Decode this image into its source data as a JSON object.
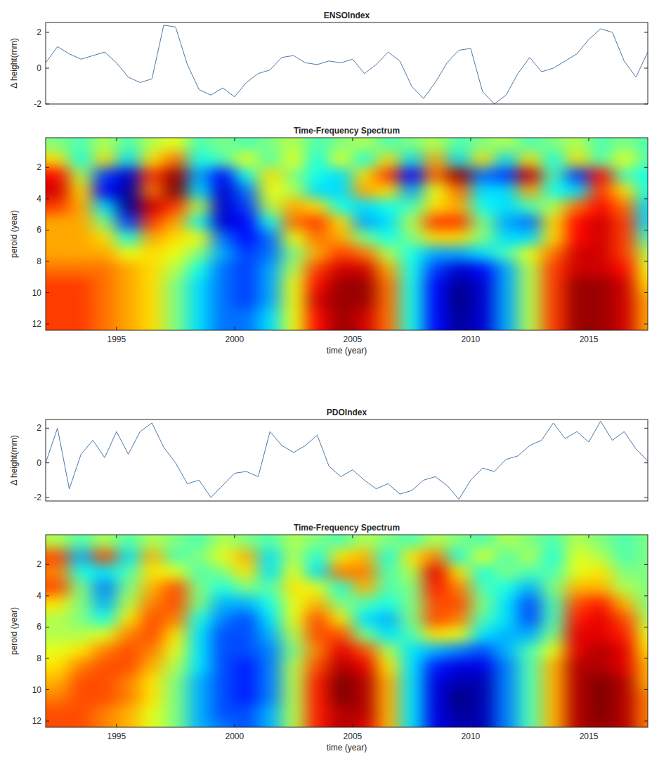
{
  "chart_data": [
    {
      "type": "line",
      "title": "ENSOIndex",
      "y_label": "Δ height(mm)",
      "x": [
        1992,
        1992.5,
        1993,
        1993.5,
        1994,
        1994.5,
        1995,
        1995.5,
        1996,
        1996.5,
        1997,
        1997.5,
        1998,
        1998.5,
        1999,
        1999.5,
        2000,
        2000.5,
        2001,
        2001.5,
        2002,
        2002.5,
        2003,
        2003.5,
        2004,
        2004.5,
        2005,
        2005.5,
        2006,
        2006.5,
        2007,
        2007.5,
        2008,
        2008.5,
        2009,
        2009.5,
        2010,
        2010.5,
        2011,
        2011.5,
        2012,
        2012.5,
        2013,
        2013.5,
        2014,
        2014.5,
        2015,
        2015.5,
        2016,
        2016.5,
        2017,
        2017.5
      ],
      "series": [
        {
          "color": "#4a78a8",
          "values": [
            0.3,
            1.2,
            0.8,
            0.5,
            0.7,
            0.9,
            0.3,
            -0.5,
            -0.8,
            -0.6,
            2.4,
            2.3,
            0.2,
            -1.2,
            -1.5,
            -1.1,
            -1.6,
            -0.8,
            -0.3,
            -0.1,
            0.6,
            0.7,
            0.3,
            0.2,
            0.4,
            0.3,
            0.5,
            -0.3,
            0.2,
            0.9,
            0.4,
            -1.0,
            -1.7,
            -0.8,
            0.3,
            1.0,
            1.1,
            -1.3,
            -2.0,
            -1.5,
            -0.3,
            0.6,
            -0.2,
            0.0,
            0.4,
            0.8,
            1.6,
            2.2,
            2.0,
            0.4,
            -0.5,
            0.9
          ]
        }
      ],
      "xlim": [
        1992,
        2017.5
      ],
      "ylim": [
        -2.0,
        2.55
      ],
      "yticks": [
        -2,
        0,
        2
      ],
      "tick_labels": "y"
    },
    {
      "type": "heatmap",
      "title": "Time-Frequency Spectrum",
      "x_label": "time (year)",
      "y_label": "peroid (year)",
      "x": [
        1992.5,
        1993.5,
        1994.5,
        1995.5,
        1996.5,
        1997.5,
        1998.5,
        1999.5,
        2000.5,
        2001.5,
        2002.5,
        2003.5,
        2004.5,
        2005.5,
        2006.5,
        2007.5,
        2008.5,
        2009.5,
        2010.5,
        2011.5,
        2012.5,
        2013.5,
        2014.5,
        2015.5,
        2016.5,
        2017.5
      ],
      "y": [
        0.5,
        1.5,
        2.5,
        3.5,
        4.5,
        5.5,
        6.5,
        7.5,
        8.5,
        9.5,
        10.5,
        11.5,
        12.5
      ],
      "cells": [
        [
          0,
          -0.1,
          0.1,
          -0.1,
          0.1,
          0.2,
          -0.1,
          0,
          -0.1,
          0,
          0.1,
          -0.1,
          0,
          0.1,
          -0.1,
          0,
          0.1,
          -0.1,
          0,
          0.1,
          -0.1,
          0,
          0.1,
          -0.1,
          0,
          -0.1
        ],
        [
          0.3,
          -0.2,
          0.3,
          -0.3,
          0.3,
          0.5,
          -0.2,
          -0.1,
          0.2,
          -0.1,
          0.2,
          -0.2,
          0.2,
          -0.2,
          0.3,
          -0.3,
          0.4,
          -0.3,
          0.3,
          -0.3,
          0.3,
          -0.2,
          0.3,
          -0.1,
          0.2,
          -0.1
        ],
        [
          0.7,
          0.1,
          -0.6,
          -0.8,
          0.6,
          0.9,
          -0.4,
          -0.7,
          -0.2,
          0.3,
          0.0,
          -0.2,
          -0.3,
          0.3,
          0.6,
          -0.7,
          0.5,
          0.9,
          -0.5,
          -0.6,
          0.8,
          -0.1,
          -0.6,
          0.7,
          -0.1,
          -0.2
        ],
        [
          0.8,
          0.3,
          -0.7,
          -0.9,
          0.5,
          0.95,
          -0.3,
          -0.8,
          -0.5,
          0.2,
          0.1,
          -0.3,
          -0.3,
          0.4,
          0.3,
          -0.4,
          0.2,
          0.5,
          -0.3,
          -0.3,
          0.4,
          -0.2,
          -0.3,
          0.6,
          0.3,
          -0.2
        ],
        [
          0.6,
          0.4,
          -0.3,
          -0.9,
          0.8,
          0.6,
          0.1,
          -0.8,
          -0.6,
          0.1,
          0.4,
          0.3,
          -0.2,
          -0.3,
          -0.2,
          -0.1,
          0.3,
          0.4,
          -0.2,
          -0.3,
          -0.1,
          0.1,
          0.5,
          0.7,
          0.5,
          -0.3
        ],
        [
          0.4,
          0.4,
          0.0,
          -0.6,
          0.6,
          0.4,
          -0.2,
          -0.8,
          -0.7,
          -0.2,
          0.5,
          0.6,
          0.3,
          -0.4,
          -0.3,
          0.1,
          0.6,
          0.6,
          0.0,
          -0.4,
          -0.5,
          0.3,
          0.7,
          0.8,
          0.6,
          -0.3
        ],
        [
          0.4,
          0.4,
          0.3,
          -0.2,
          0.4,
          0.3,
          0.2,
          -0.5,
          -0.7,
          -0.5,
          0.2,
          0.5,
          0.4,
          0.0,
          -0.2,
          0.0,
          0.3,
          0.3,
          0.0,
          -0.3,
          -0.3,
          0.3,
          0.7,
          0.8,
          0.6,
          -0.1
        ],
        [
          0.4,
          0.4,
          0.4,
          0.2,
          0.3,
          0.2,
          0.0,
          -0.4,
          -0.6,
          -0.5,
          0.0,
          0.4,
          0.6,
          0.5,
          0.1,
          -0.2,
          -0.4,
          -0.4,
          -0.3,
          -0.1,
          0.2,
          0.5,
          0.8,
          0.8,
          0.6,
          0.1
        ],
        [
          0.5,
          0.5,
          0.5,
          0.4,
          0.3,
          0.1,
          -0.2,
          -0.5,
          -0.6,
          -0.4,
          0.1,
          0.6,
          0.8,
          0.8,
          0.4,
          -0.2,
          -0.6,
          -0.8,
          -0.7,
          -0.4,
          0.1,
          0.6,
          0.8,
          0.8,
          0.7,
          0.2
        ],
        [
          0.6,
          0.6,
          0.5,
          0.4,
          0.3,
          0.0,
          -0.3,
          -0.5,
          -0.6,
          -0.4,
          0.2,
          0.7,
          0.9,
          0.9,
          0.5,
          -0.2,
          -0.7,
          -0.9,
          -0.8,
          -0.4,
          0.1,
          0.6,
          0.9,
          0.9,
          0.8,
          0.3
        ],
        [
          0.6,
          0.6,
          0.5,
          0.4,
          0.3,
          0.0,
          -0.3,
          -0.5,
          -0.6,
          -0.4,
          0.2,
          0.8,
          0.9,
          0.9,
          0.5,
          -0.2,
          -0.7,
          -0.95,
          -0.8,
          -0.4,
          0.1,
          0.6,
          0.9,
          0.9,
          0.8,
          0.4
        ],
        [
          0.6,
          0.6,
          0.5,
          0.4,
          0.3,
          0.0,
          -0.3,
          -0.5,
          -0.5,
          -0.3,
          0.2,
          0.7,
          0.9,
          0.8,
          0.5,
          -0.2,
          -0.7,
          -0.9,
          -0.8,
          -0.4,
          0.1,
          0.6,
          0.9,
          0.9,
          0.8,
          0.4
        ],
        [
          0.6,
          0.6,
          0.5,
          0.4,
          0.3,
          0.0,
          -0.3,
          -0.5,
          -0.5,
          -0.3,
          0.2,
          0.7,
          0.9,
          0.8,
          0.5,
          -0.2,
          -0.7,
          -0.9,
          -0.8,
          -0.4,
          0.1,
          0.6,
          0.9,
          0.9,
          0.8,
          0.4
        ]
      ],
      "xlim": [
        1992,
        2017.5
      ],
      "ylim": [
        12.4,
        0.1
      ],
      "xticks": [
        1995,
        2000,
        2005,
        2010,
        2015
      ],
      "yticks": [
        2,
        4,
        6,
        8,
        10,
        12
      ]
    },
    {
      "type": "line",
      "title": "PDOIndex",
      "y_label": "Δ height(mm)",
      "x": [
        1992,
        1992.5,
        1993,
        1993.5,
        1994,
        1994.5,
        1995,
        1995.5,
        1996,
        1996.5,
        1997,
        1997.5,
        1998,
        1998.5,
        1999,
        1999.5,
        2000,
        2000.5,
        2001,
        2001.5,
        2002,
        2002.5,
        2003,
        2003.5,
        2004,
        2004.5,
        2005,
        2005.5,
        2006,
        2006.5,
        2007,
        2007.5,
        2008,
        2008.5,
        2009,
        2009.5,
        2010,
        2010.5,
        2011,
        2011.5,
        2012,
        2012.5,
        2013,
        2013.5,
        2014,
        2014.5,
        2015,
        2015.5,
        2016,
        2016.5,
        2017,
        2017.5
      ],
      "series": [
        {
          "color": "#4a78a8",
          "values": [
            0.0,
            2.0,
            -1.5,
            0.5,
            1.3,
            0.3,
            1.8,
            0.5,
            1.8,
            2.3,
            0.9,
            0.0,
            -1.2,
            -1.0,
            -2.0,
            -1.3,
            -0.6,
            -0.5,
            -0.8,
            1.8,
            1.0,
            0.6,
            1.0,
            1.6,
            -0.2,
            -0.8,
            -0.4,
            -1.0,
            -1.5,
            -1.2,
            -1.8,
            -1.6,
            -1.0,
            -0.8,
            -1.3,
            -2.1,
            -1.0,
            -0.3,
            -0.5,
            0.2,
            0.4,
            1.0,
            1.3,
            2.3,
            1.4,
            1.8,
            1.2,
            2.4,
            1.3,
            1.8,
            0.8,
            0.1
          ]
        }
      ],
      "xlim": [
        1992,
        2017.5
      ],
      "ylim": [
        -2.2,
        2.5
      ],
      "yticks": [
        -2,
        0,
        2
      ],
      "tick_labels": "y"
    },
    {
      "type": "heatmap",
      "title": "Time-Frequency Spectrum",
      "x_label": "time (year)",
      "y_label": "peroid (year)",
      "x": [
        1992.5,
        1993.5,
        1994.5,
        1995.5,
        1996.5,
        1997.5,
        1998.5,
        1999.5,
        2000.5,
        2001.5,
        2002.5,
        2003.5,
        2004.5,
        2005.5,
        2006.5,
        2007.5,
        2008.5,
        2009.5,
        2010.5,
        2011.5,
        2012.5,
        2013.5,
        2014.5,
        2015.5,
        2016.5,
        2017.5
      ],
      "y": [
        0.5,
        1.5,
        2.5,
        3.5,
        4.5,
        5.5,
        6.5,
        7.5,
        8.5,
        9.5,
        10.5,
        11.5,
        12.5
      ],
      "cells": [
        [
          0.1,
          -0.1,
          0.1,
          -0.1,
          0.1,
          0,
          -0.1,
          0.1,
          0,
          -0.1,
          0.1,
          0,
          -0.1,
          0.1,
          0,
          -0.1,
          0.1,
          0,
          -0.1,
          0.1,
          0,
          -0.1,
          0.1,
          0,
          -0.1,
          0
        ],
        [
          0.6,
          -0.4,
          0.6,
          -0.3,
          0.4,
          -0.1,
          0.0,
          0.2,
          0.4,
          -0.3,
          0.1,
          -0.2,
          0.3,
          0.4,
          -0.2,
          0.3,
          0.5,
          -0.2,
          0.2,
          -0.1,
          0.1,
          -0.2,
          0.2,
          0.1,
          -0.1,
          0.0
        ],
        [
          0.5,
          -0.2,
          -0.3,
          -0.1,
          0.3,
          0.2,
          -0.1,
          0.0,
          0.3,
          -0.3,
          0.2,
          -0.3,
          0.5,
          0.5,
          -0.1,
          0.1,
          0.8,
          0.3,
          -0.2,
          0.0,
          -0.1,
          -0.1,
          0.2,
          0.3,
          0.0,
          0.0
        ],
        [
          0.6,
          0.0,
          -0.5,
          0.0,
          0.4,
          0.6,
          0.0,
          -0.2,
          0.0,
          -0.1,
          0.3,
          0.2,
          -0.2,
          0.4,
          -0.1,
          0.0,
          0.7,
          0.5,
          -0.1,
          -0.2,
          -0.4,
          0.0,
          0.4,
          0.4,
          0.1,
          0.0
        ],
        [
          0.3,
          0.0,
          -0.4,
          0.1,
          0.5,
          0.6,
          0.0,
          -0.4,
          -0.4,
          -0.2,
          0.2,
          0.4,
          0.0,
          -0.1,
          -0.2,
          0.0,
          0.6,
          0.6,
          0.0,
          -0.3,
          -0.6,
          -0.1,
          0.6,
          0.7,
          0.4,
          0.0
        ],
        [
          0.1,
          0.0,
          -0.2,
          0.3,
          0.6,
          0.5,
          -0.2,
          -0.5,
          -0.6,
          -0.3,
          0.2,
          0.6,
          0.3,
          -0.3,
          -0.4,
          0.0,
          0.6,
          0.5,
          -0.1,
          -0.3,
          -0.6,
          -0.1,
          0.7,
          0.8,
          0.6,
          0.1
        ],
        [
          0.1,
          0.1,
          0.2,
          0.5,
          0.6,
          0.3,
          -0.3,
          -0.6,
          -0.6,
          -0.4,
          0.1,
          0.6,
          0.6,
          0.0,
          -0.3,
          -0.1,
          0.3,
          0.2,
          -0.3,
          -0.4,
          -0.4,
          0.0,
          0.8,
          0.8,
          0.7,
          0.2
        ],
        [
          0.2,
          0.3,
          0.5,
          0.6,
          0.5,
          0.2,
          -0.3,
          -0.6,
          -0.6,
          -0.5,
          0.0,
          0.5,
          0.8,
          0.6,
          0.1,
          -0.3,
          -0.4,
          -0.5,
          -0.6,
          -0.4,
          -0.1,
          0.2,
          0.8,
          0.9,
          0.8,
          0.3
        ],
        [
          0.3,
          0.5,
          0.6,
          0.6,
          0.4,
          0.1,
          -0.3,
          -0.6,
          -0.7,
          -0.5,
          0.1,
          0.6,
          0.9,
          0.8,
          0.3,
          -0.3,
          -0.7,
          -0.8,
          -0.8,
          -0.5,
          -0.1,
          0.4,
          0.9,
          0.9,
          0.8,
          0.4
        ],
        [
          0.4,
          0.6,
          0.6,
          0.5,
          0.3,
          0.0,
          -0.4,
          -0.6,
          -0.7,
          -0.5,
          0.1,
          0.7,
          1.0,
          0.9,
          0.4,
          -0.3,
          -0.8,
          -0.9,
          -0.9,
          -0.5,
          -0.1,
          0.4,
          0.9,
          1.0,
          0.9,
          0.4
        ],
        [
          0.5,
          0.6,
          0.6,
          0.5,
          0.3,
          0.0,
          -0.4,
          -0.6,
          -0.7,
          -0.5,
          0.1,
          0.7,
          1.0,
          0.9,
          0.4,
          -0.3,
          -0.8,
          -1.0,
          -0.9,
          -0.5,
          -0.1,
          0.4,
          0.9,
          1.0,
          0.9,
          0.5
        ],
        [
          0.6,
          0.6,
          0.5,
          0.4,
          0.2,
          0.0,
          -0.4,
          -0.6,
          -0.6,
          -0.4,
          0.1,
          0.7,
          0.9,
          0.9,
          0.4,
          -0.3,
          -0.8,
          -0.95,
          -0.9,
          -0.5,
          -0.1,
          0.4,
          0.9,
          1.0,
          0.9,
          0.5
        ],
        [
          0.6,
          0.6,
          0.5,
          0.4,
          0.2,
          0.0,
          -0.4,
          -0.5,
          -0.6,
          -0.4,
          0.1,
          0.7,
          0.9,
          0.8,
          0.4,
          -0.3,
          -0.8,
          -0.9,
          -0.9,
          -0.5,
          -0.1,
          0.4,
          0.9,
          0.95,
          0.9,
          0.5
        ]
      ],
      "xlim": [
        1992,
        2017.5
      ],
      "ylim": [
        12.4,
        0.1
      ],
      "xticks": [
        1995,
        2000,
        2005,
        2010,
        2015
      ],
      "yticks": [
        2,
        4,
        6,
        8,
        10,
        12
      ]
    }
  ]
}
